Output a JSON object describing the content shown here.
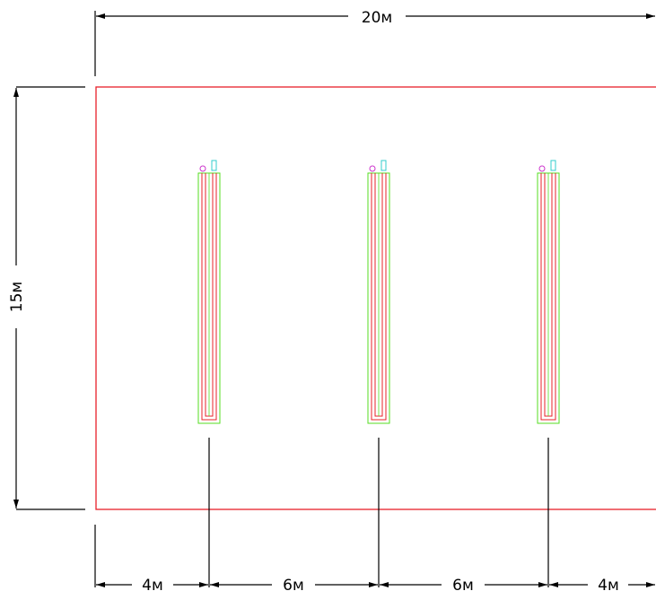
{
  "dimensions": {
    "total_width": "20м",
    "total_height": "15м",
    "segments": [
      "4м",
      "6м",
      "6м",
      "4м"
    ]
  },
  "colors": {
    "room_outline": "#e8202a",
    "collector_outer": "#55dd22",
    "loop_pipe": "#e8202a",
    "valve_circle": "#cc33cc",
    "manifold_box": "#33cccc",
    "dimension_lines": "#000000"
  },
  "elements": {
    "heating_loops": [
      "loop-1",
      "loop-2",
      "loop-3"
    ]
  }
}
